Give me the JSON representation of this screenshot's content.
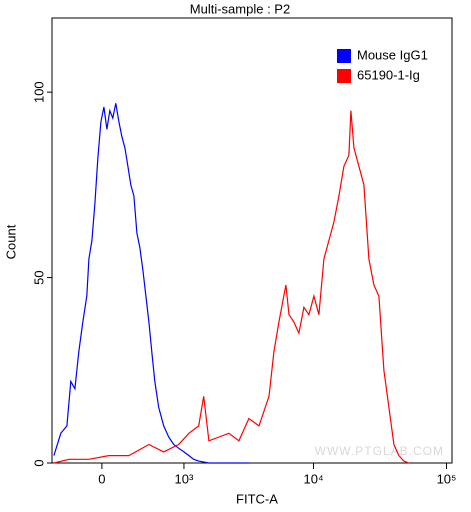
{
  "chart_data": {
    "type": "line",
    "title": "Multi-sample : P2",
    "x_label": "FITC-A",
    "y_label": "Count",
    "watermark": "WWW.PTGLAB.COM",
    "xscale": "biexponential",
    "xlim": [
      -500,
      110000
    ],
    "ylim": [
      0,
      120
    ],
    "xticks": [
      0,
      {
        "value": 1000,
        "label": "10³"
      },
      {
        "value": 10000,
        "label": "10⁴"
      },
      {
        "value": 100000,
        "label": "10⁵"
      }
    ],
    "yticks": [
      0,
      50,
      100
    ],
    "legend": "top-right",
    "series": [
      {
        "name": "Mouse IgG1",
        "color": "#0000ff",
        "x": [
          -477,
          -396,
          -330,
          -289,
          -248,
          -210,
          -172,
          -135,
          -116,
          -89,
          -62,
          -36,
          -9,
          18,
          45,
          71,
          98,
          125,
          153,
          181,
          210,
          239,
          268,
          299,
          330,
          363,
          396,
          430,
          465,
          501,
          539,
          590,
          660,
          735,
          815,
          901,
          1000,
          1100,
          1206,
          1323,
          1596,
          3247
        ],
        "values": [
          2,
          8,
          10,
          22,
          20,
          30,
          38,
          45,
          55,
          60,
          70,
          82,
          92,
          96,
          90,
          95,
          93,
          97,
          92,
          88,
          85,
          80,
          75,
          72,
          62,
          58,
          52,
          45,
          38,
          30,
          22,
          15,
          10,
          7,
          5,
          4,
          3,
          2,
          1,
          0.5,
          0,
          0
        ]
      },
      {
        "name": "65190-1-Ig",
        "color": "#ff0000",
        "x": [
          -477,
          -309,
          -116,
          62,
          248,
          465,
          660,
          901,
          1100,
          1323,
          1452,
          1596,
          1914,
          2283,
          2724,
          3247,
          3878,
          4612,
          5028,
          5484,
          6197,
          6530,
          7120,
          7762,
          8465,
          9229,
          10060,
          10973,
          11968,
          13056,
          14236,
          15518,
          16929,
          18458,
          19109,
          20130,
          21946,
          23937,
          26106,
          28461,
          31047,
          33843,
          36915,
          40219,
          43862,
          47863,
          52172
        ],
        "values": [
          0,
          1,
          1,
          2,
          2,
          5,
          3,
          5,
          8,
          10,
          18,
          6,
          7,
          8,
          6,
          12,
          10,
          18,
          30,
          38,
          48,
          40,
          38,
          35,
          42,
          40,
          45,
          40,
          55,
          60,
          65,
          72,
          80,
          83,
          95,
          85,
          80,
          75,
          55,
          48,
          45,
          25,
          15,
          5,
          2,
          0.5,
          0
        ]
      }
    ]
  }
}
